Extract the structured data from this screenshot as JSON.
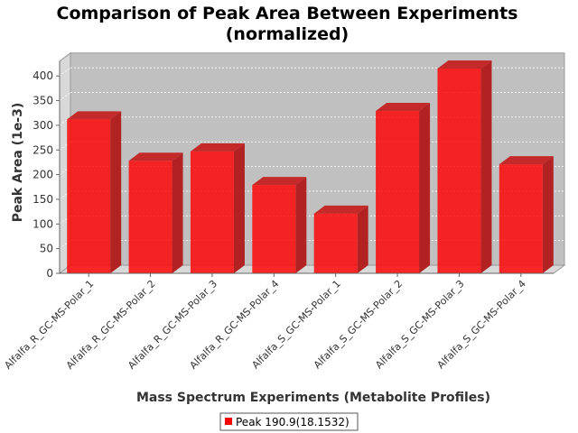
{
  "chart_data": {
    "type": "bar",
    "title": [
      "Comparison of Peak Area Between Experiments",
      "(normalized)"
    ],
    "xlabel": "Mass Spectrum Experiments (Metabolite Profiles)",
    "ylabel": "Peak Area (1e-3)",
    "categories": [
      "Alfalfa_R_GC-MS-Polar_1",
      "Alfalfa_R_GC-MS-Polar_2",
      "Alfalfa_R_GC-MS-Polar_3",
      "Alfalfa_R_GC-MS-Polar_4",
      "Alfalfa_S_GC-MS-Polar_1",
      "Alfalfa_S_GC-MS-Polar_2",
      "Alfalfa_S_GC-MS-Polar_3",
      "Alfalfa_S_GC-MS-Polar_4"
    ],
    "series": [
      {
        "name": "Peak 190.9(18.1532)",
        "color": "#ff0000",
        "values": [
          312,
          228,
          247,
          179,
          121,
          329,
          415,
          221
        ]
      }
    ],
    "ylim": [
      0,
      430
    ],
    "yticks": [
      0,
      50,
      100,
      150,
      200,
      250,
      300,
      350,
      400
    ],
    "grid": true,
    "legend": "bottom-center"
  }
}
